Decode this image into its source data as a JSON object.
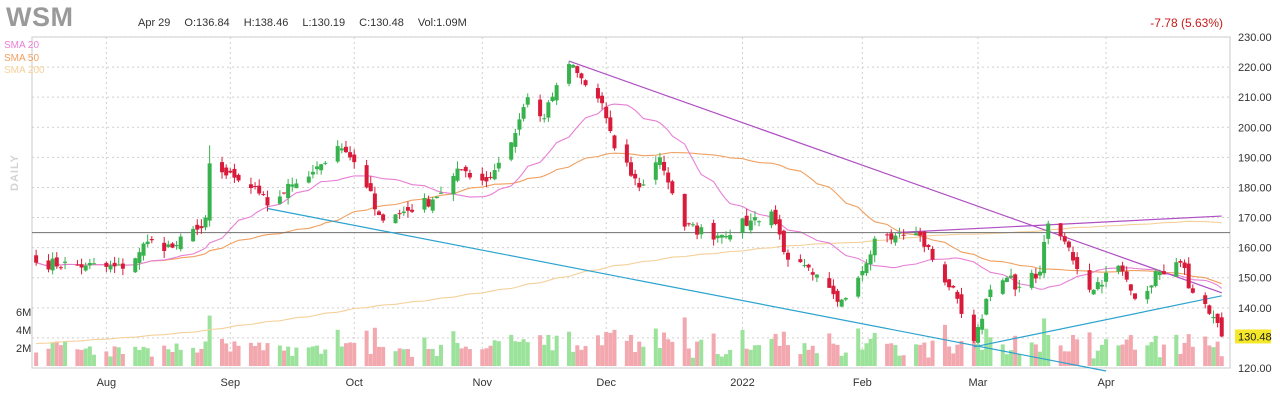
{
  "header": {
    "ticker": "WSM",
    "date": "Apr 29",
    "open": "O:136.84",
    "high": "H:138.46",
    "low": "L:130.19",
    "close": "C:130.48",
    "volume": "Vol:1.09M",
    "change": "-7.78 (5.63%)"
  },
  "period_label": "DAILY",
  "indicators": [
    {
      "label": "SMA 20",
      "color": "#e87fd6"
    },
    {
      "label": "SMA 50",
      "color": "#f0a060"
    },
    {
      "label": "SMA 200",
      "color": "#f5d09a"
    }
  ],
  "colors": {
    "up": "#37b24d",
    "down": "#d81b3a",
    "vol_up": "#9be29b",
    "vol_down": "#f2a8ae",
    "trend_upper": "#b04fc4",
    "trend_lower": "#2ba3cf",
    "resistance": "#707070",
    "price_tag": "#f5e82a"
  },
  "chart_data": {
    "type": "candlestick",
    "price_axis": {
      "min": 120,
      "max": 230,
      "ticks": [
        120,
        130,
        140,
        150,
        160,
        170,
        180,
        190,
        200,
        210,
        220,
        230
      ]
    },
    "volume_axis": {
      "ticks": [
        "2M",
        "4M",
        "6M"
      ],
      "values": [
        2,
        4,
        6
      ]
    },
    "x_labels": [
      {
        "label": "Aug",
        "date": "2021-08-02"
      },
      {
        "label": "Sep",
        "date": "2021-09-01"
      },
      {
        "label": "Oct",
        "date": "2021-10-01"
      },
      {
        "label": "Nov",
        "date": "2021-11-01"
      },
      {
        "label": "Dec",
        "date": "2021-12-01"
      },
      {
        "label": "2022",
        "date": "2022-01-03"
      },
      {
        "label": "Feb",
        "date": "2022-02-01"
      },
      {
        "label": "Mar",
        "date": "2022-03-01"
      },
      {
        "label": "Apr",
        "date": "2022-04-01"
      }
    ],
    "last_price": "130.48",
    "horizontal_line": 165,
    "close_anchors": [
      {
        "date": "2021-07-16",
        "close": 155
      },
      {
        "date": "2021-07-28",
        "close": 154
      },
      {
        "date": "2021-08-06",
        "close": 153
      },
      {
        "date": "2021-08-12",
        "close": 162
      },
      {
        "date": "2021-08-18",
        "close": 160
      },
      {
        "date": "2021-08-24",
        "close": 166
      },
      {
        "date": "2021-08-26",
        "close": 170
      },
      {
        "date": "2021-08-27",
        "close": 188
      },
      {
        "date": "2021-08-31",
        "close": 184
      },
      {
        "date": "2021-09-08",
        "close": 178
      },
      {
        "date": "2021-09-10",
        "close": 174
      },
      {
        "date": "2021-09-16",
        "close": 181
      },
      {
        "date": "2021-09-22",
        "close": 187
      },
      {
        "date": "2021-09-28",
        "close": 193
      },
      {
        "date": "2021-09-30",
        "close": 190
      },
      {
        "date": "2021-10-04",
        "close": 180
      },
      {
        "date": "2021-10-08",
        "close": 169
      },
      {
        "date": "2021-10-13",
        "close": 172
      },
      {
        "date": "2021-10-20",
        "close": 176
      },
      {
        "date": "2021-10-27",
        "close": 186
      },
      {
        "date": "2021-11-02",
        "close": 182
      },
      {
        "date": "2021-11-08",
        "close": 195
      },
      {
        "date": "2021-11-12",
        "close": 210
      },
      {
        "date": "2021-11-16",
        "close": 203
      },
      {
        "date": "2021-11-19",
        "close": 214
      },
      {
        "date": "2021-11-22",
        "close": 221
      },
      {
        "date": "2021-11-26",
        "close": 214
      },
      {
        "date": "2021-11-30",
        "close": 208
      },
      {
        "date": "2021-12-03",
        "close": 193
      },
      {
        "date": "2021-12-09",
        "close": 180
      },
      {
        "date": "2021-12-14",
        "close": 190
      },
      {
        "date": "2021-12-20",
        "close": 167
      },
      {
        "date": "2021-12-28",
        "close": 164
      },
      {
        "date": "2022-01-05",
        "close": 169
      },
      {
        "date": "2022-01-10",
        "close": 172
      },
      {
        "date": "2022-01-14",
        "close": 156
      },
      {
        "date": "2022-01-20",
        "close": 151
      },
      {
        "date": "2022-01-26",
        "close": 142
      },
      {
        "date": "2022-01-31",
        "close": 150
      },
      {
        "date": "2022-02-04",
        "close": 163
      },
      {
        "date": "2022-02-09",
        "close": 164
      },
      {
        "date": "2022-02-15",
        "close": 164
      },
      {
        "date": "2022-02-18",
        "close": 156
      },
      {
        "date": "2022-02-24",
        "close": 143
      },
      {
        "date": "2022-02-28",
        "close": 129
      },
      {
        "date": "2022-03-03",
        "close": 143
      },
      {
        "date": "2022-03-08",
        "close": 150
      },
      {
        "date": "2022-03-11",
        "close": 147
      },
      {
        "date": "2022-03-16",
        "close": 152
      },
      {
        "date": "2022-03-18",
        "close": 168
      },
      {
        "date": "2022-03-22",
        "close": 162
      },
      {
        "date": "2022-03-28",
        "close": 146
      },
      {
        "date": "2022-04-04",
        "close": 154
      },
      {
        "date": "2022-04-08",
        "close": 143
      },
      {
        "date": "2022-04-14",
        "close": 152
      },
      {
        "date": "2022-04-19",
        "close": 155
      },
      {
        "date": "2022-04-22",
        "close": 145
      },
      {
        "date": "2022-04-26",
        "close": 138
      },
      {
        "date": "2022-04-29",
        "close": 130.48
      }
    ],
    "trendlines": [
      {
        "name": "upper-downtrend",
        "from": {
          "date": "2021-11-22",
          "price": 222
        },
        "to": {
          "date": "2022-04-29",
          "price": 145
        }
      },
      {
        "name": "lower-downtrend",
        "from": {
          "date": "2021-09-10",
          "price": 173
        },
        "to": {
          "date": "2022-04-01",
          "price": 119
        }
      },
      {
        "name": "rising-support",
        "from": {
          "date": "2022-02-28",
          "price": 127
        },
        "to": {
          "date": "2022-04-29",
          "price": 144
        }
      },
      {
        "name": "rising-resistance",
        "from": {
          "date": "2022-02-09",
          "price": 165
        },
        "to": {
          "date": "2022-04-29",
          "price": 170.5
        }
      }
    ]
  }
}
